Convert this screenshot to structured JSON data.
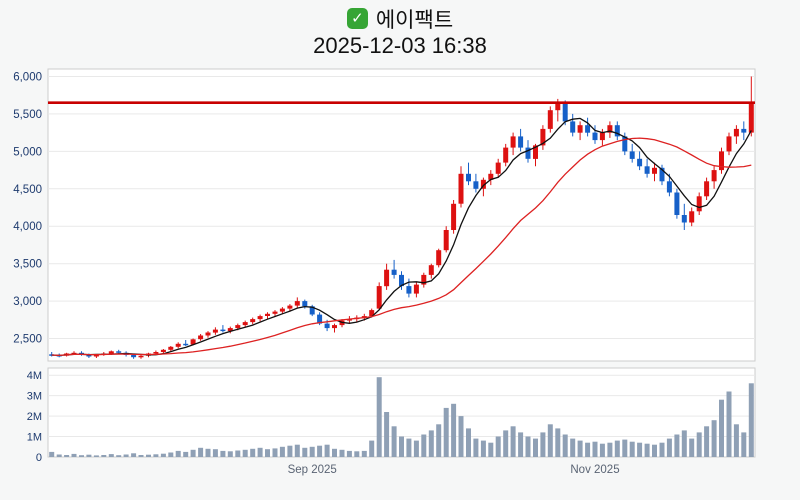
{
  "header": {
    "check_icon": "green-checkbox",
    "title": "에이팩트",
    "timestamp": "2025-12-03 16:38"
  },
  "chart_data": {
    "type": "candlestick",
    "title": "에이팩트",
    "subtitle": "2025-12-03 16:38",
    "grid": true,
    "legend": "none",
    "colors": {
      "up": "#dd1111",
      "down": "#1660c8",
      "volume": "#8fa0b5",
      "ma_short": "#111111",
      "ma_long": "#dd2222",
      "reference": "#c80000",
      "axis_label": "#1d3a6e",
      "x_label": "#5a6474",
      "gridline": "#e9e9e9",
      "panel_border": "#cccccc"
    },
    "price_axis": {
      "ylim": [
        2200,
        6100
      ],
      "ticks": [
        {
          "value": 2500,
          "label": "2,500"
        },
        {
          "value": 3000,
          "label": "3,000"
        },
        {
          "value": 3500,
          "label": "3,500"
        },
        {
          "value": 4000,
          "label": "4,000"
        },
        {
          "value": 4500,
          "label": "4,500"
        },
        {
          "value": 5000,
          "label": "5,000"
        },
        {
          "value": 5500,
          "label": "5,500"
        },
        {
          "value": 6000,
          "label": "6,000"
        }
      ]
    },
    "volume_axis": {
      "scale_max": 4.35,
      "unit": "M",
      "ticks": [
        {
          "value": 0,
          "label": "0"
        },
        {
          "value": 1,
          "label": "1M"
        },
        {
          "value": 2,
          "label": "2M"
        },
        {
          "value": 3,
          "label": "3M"
        },
        {
          "value": 4,
          "label": "4M"
        }
      ]
    },
    "x_ticks": [
      {
        "index": 35,
        "label": "Sep 2025"
      },
      {
        "index": 73,
        "label": "Nov 2025"
      }
    ],
    "reference_line": {
      "value": 5650
    },
    "moving_averages": [
      {
        "name": "ma-short",
        "window": 5
      },
      {
        "name": "ma-long",
        "window": 20
      }
    ],
    "candles": [
      [
        2290,
        2320,
        2260,
        2280,
        0.25
      ],
      [
        2280,
        2300,
        2250,
        2270,
        0.12
      ],
      [
        2270,
        2310,
        2260,
        2300,
        0.1
      ],
      [
        2300,
        2330,
        2280,
        2310,
        0.15
      ],
      [
        2310,
        2330,
        2270,
        2290,
        0.09
      ],
      [
        2290,
        2300,
        2240,
        2260,
        0.11
      ],
      [
        2260,
        2290,
        2240,
        2280,
        0.08
      ],
      [
        2280,
        2320,
        2270,
        2300,
        0.1
      ],
      [
        2300,
        2340,
        2280,
        2330,
        0.14
      ],
      [
        2330,
        2350,
        2290,
        2310,
        0.09
      ],
      [
        2310,
        2330,
        2260,
        2280,
        0.12
      ],
      [
        2280,
        2300,
        2230,
        2250,
        0.18
      ],
      [
        2250,
        2290,
        2230,
        2270,
        0.1
      ],
      [
        2270,
        2310,
        2250,
        2300,
        0.11
      ],
      [
        2300,
        2340,
        2280,
        2320,
        0.13
      ],
      [
        2320,
        2360,
        2300,
        2350,
        0.16
      ],
      [
        2350,
        2400,
        2330,
        2390,
        0.22
      ],
      [
        2390,
        2450,
        2370,
        2430,
        0.3
      ],
      [
        2430,
        2480,
        2400,
        2420,
        0.25
      ],
      [
        2420,
        2500,
        2410,
        2490,
        0.35
      ],
      [
        2490,
        2560,
        2470,
        2540,
        0.45
      ],
      [
        2540,
        2600,
        2510,
        2580,
        0.4
      ],
      [
        2580,
        2650,
        2550,
        2620,
        0.38
      ],
      [
        2620,
        2680,
        2580,
        2600,
        0.3
      ],
      [
        2600,
        2660,
        2570,
        2640,
        0.28
      ],
      [
        2640,
        2700,
        2610,
        2680,
        0.32
      ],
      [
        2680,
        2740,
        2650,
        2720,
        0.35
      ],
      [
        2720,
        2780,
        2690,
        2760,
        0.4
      ],
      [
        2760,
        2820,
        2730,
        2800,
        0.45
      ],
      [
        2800,
        2850,
        2760,
        2830,
        0.38
      ],
      [
        2830,
        2880,
        2790,
        2860,
        0.42
      ],
      [
        2860,
        2920,
        2830,
        2900,
        0.5
      ],
      [
        2900,
        2960,
        2860,
        2940,
        0.55
      ],
      [
        2940,
        3050,
        2910,
        3000,
        0.6
      ],
      [
        3000,
        3020,
        2900,
        2930,
        0.45
      ],
      [
        2930,
        2950,
        2800,
        2820,
        0.5
      ],
      [
        2820,
        2850,
        2680,
        2700,
        0.55
      ],
      [
        2700,
        2750,
        2600,
        2640,
        0.6
      ],
      [
        2640,
        2700,
        2580,
        2680,
        0.4
      ],
      [
        2680,
        2760,
        2650,
        2740,
        0.35
      ],
      [
        2740,
        2800,
        2700,
        2760,
        0.3
      ],
      [
        2760,
        2810,
        2720,
        2780,
        0.28
      ],
      [
        2780,
        2830,
        2740,
        2800,
        0.3
      ],
      [
        2800,
        2900,
        2780,
        2880,
        0.8
      ],
      [
        2900,
        3250,
        2880,
        3200,
        3.9
      ],
      [
        3200,
        3500,
        3150,
        3420,
        2.2
      ],
      [
        3420,
        3550,
        3300,
        3350,
        1.5
      ],
      [
        3350,
        3400,
        3150,
        3200,
        1.0
      ],
      [
        3200,
        3300,
        3050,
        3100,
        0.9
      ],
      [
        3100,
        3250,
        3050,
        3220,
        0.8
      ],
      [
        3220,
        3380,
        3180,
        3350,
        1.1
      ],
      [
        3350,
        3500,
        3300,
        3480,
        1.3
      ],
      [
        3480,
        3700,
        3450,
        3680,
        1.6
      ],
      [
        3680,
        4000,
        3650,
        3950,
        2.4
      ],
      [
        3950,
        4350,
        3900,
        4300,
        2.6
      ],
      [
        4300,
        4800,
        4250,
        4700,
        2.0
      ],
      [
        4700,
        4850,
        4550,
        4600,
        1.4
      ],
      [
        4600,
        4700,
        4450,
        4500,
        0.9
      ],
      [
        4500,
        4650,
        4400,
        4620,
        0.8
      ],
      [
        4620,
        4750,
        4550,
        4700,
        0.7
      ],
      [
        4700,
        4900,
        4650,
        4850,
        1.0
      ],
      [
        4850,
        5100,
        4800,
        5050,
        1.3
      ],
      [
        5050,
        5250,
        4950,
        5200,
        1.5
      ],
      [
        5200,
        5300,
        5000,
        5050,
        1.2
      ],
      [
        5050,
        5150,
        4850,
        4900,
        1.0
      ],
      [
        4900,
        5100,
        4800,
        5080,
        0.9
      ],
      [
        5080,
        5350,
        5020,
        5300,
        1.2
      ],
      [
        5300,
        5600,
        5250,
        5550,
        1.6
      ],
      [
        5550,
        5700,
        5400,
        5650,
        1.4
      ],
      [
        5650,
        5680,
        5350,
        5400,
        1.1
      ],
      [
        5400,
        5500,
        5200,
        5250,
        0.9
      ],
      [
        5250,
        5400,
        5150,
        5350,
        0.8
      ],
      [
        5350,
        5450,
        5200,
        5250,
        0.7
      ],
      [
        5250,
        5350,
        5100,
        5150,
        0.75
      ],
      [
        5150,
        5300,
        5080,
        5250,
        0.65
      ],
      [
        5250,
        5400,
        5180,
        5350,
        0.7
      ],
      [
        5350,
        5400,
        5150,
        5200,
        0.8
      ],
      [
        5200,
        5250,
        4950,
        5000,
        0.85
      ],
      [
        5000,
        5100,
        4850,
        4900,
        0.75
      ],
      [
        4900,
        5000,
        4750,
        4800,
        0.7
      ],
      [
        4800,
        4900,
        4650,
        4700,
        0.65
      ],
      [
        4700,
        4850,
        4600,
        4780,
        0.6
      ],
      [
        4780,
        4820,
        4550,
        4600,
        0.7
      ],
      [
        4600,
        4700,
        4400,
        4450,
        0.9
      ],
      [
        4450,
        4500,
        4100,
        4150,
        1.1
      ],
      [
        4150,
        4300,
        3950,
        4050,
        1.3
      ],
      [
        4050,
        4250,
        4000,
        4200,
        0.9
      ],
      [
        4200,
        4450,
        4150,
        4400,
        1.2
      ],
      [
        4400,
        4650,
        4350,
        4600,
        1.5
      ],
      [
        4600,
        4800,
        4500,
        4750,
        1.8
      ],
      [
        4750,
        5050,
        4700,
        5000,
        2.8
      ],
      [
        5000,
        5250,
        4950,
        5200,
        3.2
      ],
      [
        5200,
        5350,
        5100,
        5300,
        1.6
      ],
      [
        5300,
        5400,
        5150,
        5250,
        1.2
      ],
      [
        5250,
        6000,
        5200,
        5650,
        3.6
      ]
    ]
  }
}
